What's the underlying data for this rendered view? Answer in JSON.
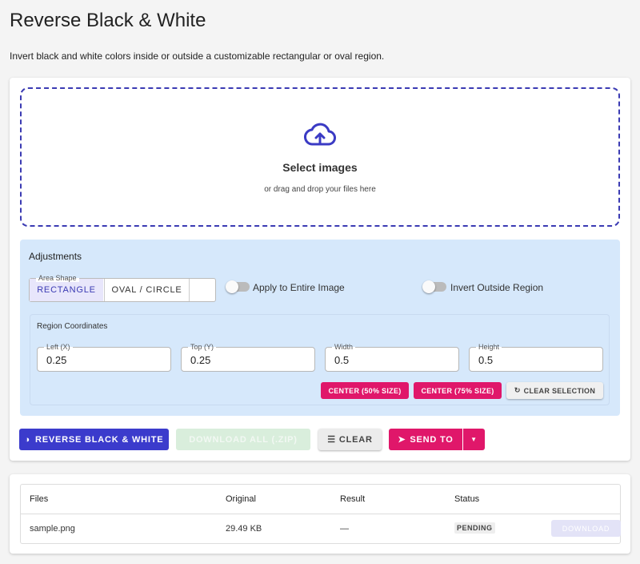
{
  "header": {
    "title": "Reverse Black & White",
    "description": "Invert black and white colors inside or outside a customizable rectangular or oval region."
  },
  "upload": {
    "title": "Select images",
    "hint": "or drag and drop your files here"
  },
  "adjustments": {
    "title": "Adjustments",
    "area_shape_label": "Area Shape",
    "shapes": [
      "RECTANGLE",
      "OVAL / CIRCLE"
    ],
    "toggles": [
      "Apply to Entire Image",
      "Invert Outside Region"
    ],
    "region_title": "Region Coordinates",
    "fields": [
      {
        "label": "Left (X)",
        "value": "0.25"
      },
      {
        "label": "Top (Y)",
        "value": "0.25"
      },
      {
        "label": "Width",
        "value": "0.5"
      },
      {
        "label": "Height",
        "value": "0.5"
      }
    ],
    "buttons": [
      "CENTER (50% SIZE)",
      "CENTER (75% SIZE)",
      "CLEAR SELECTION"
    ]
  },
  "actions": [
    "REVERSE BLACK & WHITE",
    "DOWNLOAD ALL (.ZIP)",
    "CLEAR",
    "SEND TO"
  ],
  "table": {
    "headers": [
      "Files",
      "Original",
      "Result",
      "Status"
    ],
    "rows": [
      [
        "sample.png",
        "29.49 KB",
        "—",
        "PENDING",
        "DOWNLOAD"
      ]
    ]
  }
}
